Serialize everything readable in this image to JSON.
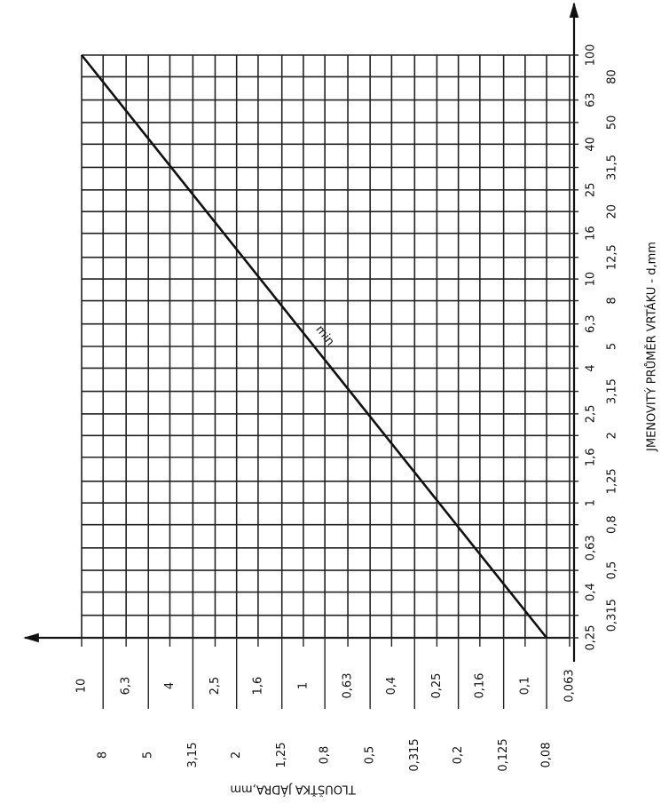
{
  "chart_data": {
    "type": "line",
    "x_label": "JMENOVITÝ PRŮMĚR VRTÁKU - d,mm",
    "y_label": "TLOUŠŤKA JÁDRA,mm",
    "x": [
      0.25,
      100
    ],
    "series": [
      {
        "name": "min",
        "color": "#111111",
        "values": [
          0.08,
          10
        ]
      }
    ],
    "xlim": [
      0.25,
      100
    ],
    "ylim": [
      0.063,
      10
    ],
    "xscale": "log",
    "yscale": "log",
    "grid": true,
    "xticks": [
      {
        "value": 0.25,
        "label": "0,25"
      },
      {
        "value": 0.315,
        "label": "0,315"
      },
      {
        "value": 0.4,
        "label": "0,4"
      },
      {
        "value": 0.5,
        "label": "0,5"
      },
      {
        "value": 0.63,
        "label": "0,63"
      },
      {
        "value": 0.8,
        "label": "0,8"
      },
      1,
      {
        "value": 1.25,
        "label": "1,25"
      },
      {
        "value": 1.6,
        "label": "1,6"
      },
      2,
      {
        "value": 2.5,
        "label": "2,5"
      },
      {
        "value": 3.15,
        "label": "3,15"
      },
      4,
      5,
      {
        "value": 6.3,
        "label": "6,3"
      },
      8,
      10,
      {
        "value": 12.5,
        "label": "12,5"
      },
      16,
      20,
      25,
      {
        "value": 31.5,
        "label": "31,5"
      },
      40,
      50,
      63,
      80,
      100
    ],
    "yticks": [
      10,
      8,
      {
        "value": 6.3,
        "label": "6,3"
      },
      5,
      4,
      {
        "value": 3.15,
        "label": "3,15"
      },
      {
        "value": 2.5,
        "label": "2,5"
      },
      2,
      {
        "value": 1.6,
        "label": "1,6"
      },
      {
        "value": 1.25,
        "label": "1,25"
      },
      1,
      {
        "value": 0.8,
        "label": "0,8"
      },
      {
        "value": 0.63,
        "label": "0,63"
      },
      {
        "value": 0.5,
        "label": "0,5"
      },
      {
        "value": 0.4,
        "label": "0,4"
      },
      {
        "value": 0.315,
        "label": "0,315"
      },
      {
        "value": 0.25,
        "label": "0,25"
      },
      {
        "value": 0.2,
        "label": "0,2"
      },
      {
        "value": 0.16,
        "label": "0,16"
      },
      {
        "value": 0.125,
        "label": "0,125"
      },
      {
        "value": 0.1,
        "label": "0,1"
      },
      {
        "value": 0.08,
        "label": "0,08"
      },
      {
        "value": 0.063,
        "label": "0,063"
      }
    ]
  }
}
